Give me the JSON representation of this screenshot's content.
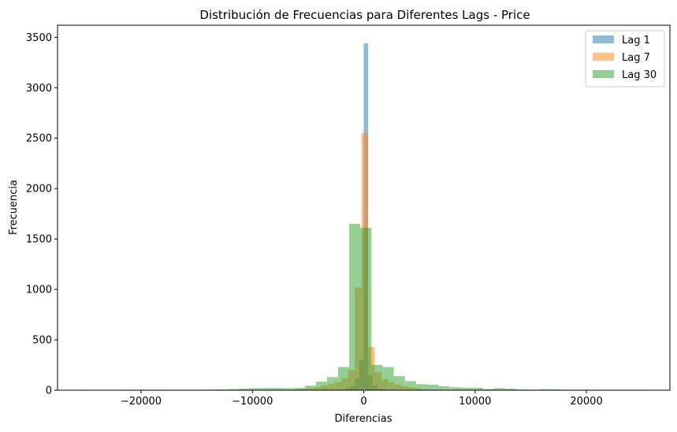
{
  "chart_data": {
    "type": "histogram",
    "title": "Distribución de Frecuencias para Diferentes Lags - Price",
    "xlabel": "Diferencias",
    "ylabel": "Frecuencia",
    "xlim": [
      -27500,
      27500
    ],
    "ylim": [
      0,
      3620
    ],
    "xticks": [
      -20000,
      -10000,
      0,
      10000,
      20000
    ],
    "xtick_labels": [
      "−20000",
      "−10000",
      "0",
      "10000",
      "20000"
    ],
    "yticks": [
      0,
      500,
      1000,
      1500,
      2000,
      2500,
      3000,
      3500
    ],
    "ytick_labels": [
      "0",
      "500",
      "1000",
      "1500",
      "2000",
      "2500",
      "3000",
      "3500"
    ],
    "grid": false,
    "legend_position": "top-right",
    "series": [
      {
        "name": "Lag 1",
        "color": "#1f77b4",
        "alpha": 0.5,
        "bins": [
          [
            -2400,
            -2000,
            5
          ],
          [
            -2000,
            -1600,
            10
          ],
          [
            -1600,
            -1200,
            20
          ],
          [
            -1200,
            -800,
            45
          ],
          [
            -800,
            -400,
            120
          ],
          [
            -400,
            0,
            300
          ],
          [
            0,
            400,
            3440
          ],
          [
            400,
            800,
            150
          ],
          [
            800,
            1200,
            50
          ],
          [
            1200,
            1600,
            20
          ],
          [
            1600,
            2000,
            10
          ],
          [
            2000,
            2400,
            5
          ]
        ]
      },
      {
        "name": "Lag 7",
        "color": "#ff7f0e",
        "alpha": 0.5,
        "bins": [
          [
            -6200,
            -5600,
            10
          ],
          [
            -5600,
            -5000,
            15
          ],
          [
            -5000,
            -4400,
            20
          ],
          [
            -4400,
            -3800,
            30
          ],
          [
            -3800,
            -3200,
            45
          ],
          [
            -3200,
            -2600,
            60
          ],
          [
            -2600,
            -2000,
            80
          ],
          [
            -2000,
            -1400,
            120
          ],
          [
            -1400,
            -800,
            200
          ],
          [
            -800,
            -200,
            1020
          ],
          [
            -200,
            400,
            2550
          ],
          [
            400,
            1000,
            430
          ],
          [
            1000,
            1600,
            180
          ],
          [
            1600,
            2200,
            110
          ],
          [
            2200,
            2800,
            80
          ],
          [
            2800,
            3400,
            55
          ],
          [
            3400,
            4000,
            40
          ],
          [
            4000,
            4600,
            30
          ],
          [
            4600,
            5200,
            20
          ],
          [
            5200,
            5800,
            12
          ],
          [
            5800,
            6400,
            8
          ]
        ]
      },
      {
        "name": "Lag 30",
        "color": "#2ca02c",
        "alpha": 0.5,
        "bins": [
          [
            -25300,
            -24300,
            5
          ],
          [
            -24300,
            -23300,
            2
          ],
          [
            -23300,
            -22300,
            1
          ],
          [
            -22300,
            -21300,
            5
          ],
          [
            -21300,
            -20300,
            5
          ],
          [
            -20300,
            -19300,
            5
          ],
          [
            -19300,
            -18300,
            5
          ],
          [
            -18300,
            -17300,
            5
          ],
          [
            -17300,
            -16300,
            5
          ],
          [
            -16300,
            -15300,
            5
          ],
          [
            -15300,
            -14300,
            5
          ],
          [
            -14300,
            -13300,
            6
          ],
          [
            -13300,
            -12300,
            8
          ],
          [
            -12300,
            -11300,
            12
          ],
          [
            -11300,
            -10300,
            15
          ],
          [
            -10300,
            -9300,
            20
          ],
          [
            -9300,
            -8300,
            22
          ],
          [
            -8300,
            -7300,
            22
          ],
          [
            -7300,
            -6300,
            20
          ],
          [
            -6300,
            -5300,
            22
          ],
          [
            -5300,
            -4300,
            45
          ],
          [
            -4300,
            -3300,
            85
          ],
          [
            -3300,
            -2300,
            130
          ],
          [
            -2300,
            -1300,
            230
          ],
          [
            -1300,
            -300,
            1650
          ],
          [
            -300,
            700,
            1610
          ],
          [
            700,
            1700,
            250
          ],
          [
            1700,
            2700,
            230
          ],
          [
            2700,
            3700,
            140
          ],
          [
            3700,
            4700,
            90
          ],
          [
            4700,
            5700,
            60
          ],
          [
            5700,
            6700,
            55
          ],
          [
            6700,
            7700,
            40
          ],
          [
            7700,
            8700,
            30
          ],
          [
            8700,
            9700,
            25
          ],
          [
            9700,
            10700,
            25
          ],
          [
            10700,
            11700,
            12
          ],
          [
            11700,
            12700,
            20
          ],
          [
            12700,
            13700,
            15
          ],
          [
            13700,
            14700,
            8
          ],
          [
            14700,
            15700,
            5
          ],
          [
            15700,
            16700,
            10
          ],
          [
            16700,
            17700,
            10
          ],
          [
            17700,
            18700,
            5
          ],
          [
            18700,
            19700,
            5
          ],
          [
            19700,
            20700,
            5
          ],
          [
            20700,
            21700,
            5
          ],
          [
            21700,
            22700,
            5
          ],
          [
            22700,
            23700,
            5
          ],
          [
            23700,
            24700,
            5
          ],
          [
            24700,
            25300,
            5
          ]
        ]
      }
    ]
  }
}
